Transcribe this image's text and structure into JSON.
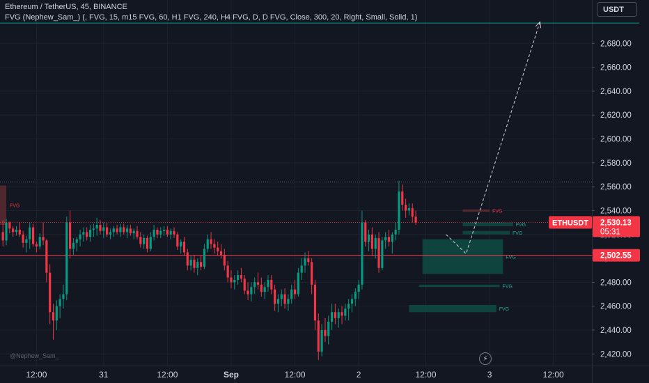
{
  "header": {
    "symbol_line": "Ethereum / TetherUS, 45, BINANCE",
    "indicator_line": "FVG (Nephew_Sam_) (, FVG, 15, m15 FVG, 60, H1 FVG, 240, H4 FVG, D, D FVG, Close, 300, 20, Right, Small, Solid, 1)",
    "currency_button": "USDT"
  },
  "watermark": "@Nephew_Sam_",
  "colors": {
    "background": "#131722",
    "up": "#089981",
    "down": "#f23645",
    "fvg_bull": "#0e4c42",
    "fvg_bear": "#5c2a30",
    "text": "#d1d4dc"
  },
  "chart_data": {
    "type": "candlestick",
    "y_range": [
      2412,
      2700
    ],
    "y_ticks": [
      "2,420.00",
      "2,440.00",
      "2,460.00",
      "2,480.00",
      "2,500.00",
      "2,520.00",
      "2,540.00",
      "2,560.00",
      "2,580.00",
      "2,600.00",
      "2,620.00",
      "2,640.00",
      "2,660.00",
      "2,680.00"
    ],
    "y_tick_values": [
      2420,
      2440,
      2460,
      2480,
      2500,
      2520,
      2540,
      2560,
      2580,
      2600,
      2620,
      2640,
      2660,
      2680
    ],
    "x_ticks": [
      {
        "label": "12:00",
        "index": 10
      },
      {
        "label": "31",
        "index": 30
      },
      {
        "label": "12:00",
        "index": 49
      },
      {
        "label": "Sep",
        "index": 68
      },
      {
        "label": "12:00",
        "index": 87
      },
      {
        "label": "2",
        "index": 106
      },
      {
        "label": "12:00",
        "index": 126
      },
      {
        "label": "3",
        "index": 145
      },
      {
        "label": "12:00",
        "index": 164
      }
    ],
    "candles": [
      [
        2522,
        2532,
        2510,
        2515
      ],
      [
        2515,
        2533,
        2511,
        2530
      ],
      [
        2530,
        2531,
        2521,
        2525
      ],
      [
        2525,
        2527,
        2518,
        2522
      ],
      [
        2522,
        2527,
        2519,
        2524
      ],
      [
        2524,
        2530,
        2518,
        2520
      ],
      [
        2520,
        2523,
        2509,
        2513
      ],
      [
        2513,
        2519,
        2505,
        2516
      ],
      [
        2516,
        2530,
        2508,
        2526
      ],
      [
        2526,
        2529,
        2510,
        2512
      ],
      [
        2512,
        2514,
        2505,
        2510
      ],
      [
        2510,
        2521,
        2508,
        2518
      ],
      [
        2518,
        2530,
        2511,
        2515
      ],
      [
        2515,
        2516,
        2480,
        2488
      ],
      [
        2488,
        2495,
        2445,
        2455
      ],
      [
        2455,
        2462,
        2432,
        2448
      ],
      [
        2448,
        2465,
        2440,
        2460
      ],
      [
        2460,
        2470,
        2450,
        2466
      ],
      [
        2466,
        2478,
        2458,
        2470
      ],
      [
        2470,
        2535,
        2465,
        2530
      ],
      [
        2530,
        2540,
        2500,
        2508
      ],
      [
        2508,
        2517,
        2503,
        2513
      ],
      [
        2513,
        2518,
        2506,
        2516
      ],
      [
        2516,
        2524,
        2510,
        2520
      ],
      [
        2520,
        2526,
        2514,
        2522
      ],
      [
        2522,
        2526,
        2515,
        2518
      ],
      [
        2518,
        2528,
        2514,
        2524
      ],
      [
        2524,
        2529,
        2518,
        2525
      ],
      [
        2525,
        2534,
        2519,
        2528
      ],
      [
        2528,
        2532,
        2520,
        2523
      ],
      [
        2523,
        2530,
        2517,
        2526
      ],
      [
        2526,
        2530,
        2518,
        2520
      ],
      [
        2520,
        2525,
        2516,
        2522
      ],
      [
        2522,
        2527,
        2518,
        2525
      ],
      [
        2525,
        2528,
        2520,
        2522
      ],
      [
        2522,
        2529,
        2518,
        2526
      ],
      [
        2526,
        2529,
        2520,
        2522
      ],
      [
        2522,
        2528,
        2517,
        2525
      ],
      [
        2525,
        2528,
        2519,
        2521
      ],
      [
        2521,
        2525,
        2516,
        2523
      ],
      [
        2523,
        2527,
        2516,
        2518
      ],
      [
        2518,
        2522,
        2509,
        2512
      ],
      [
        2512,
        2520,
        2508,
        2517
      ],
      [
        2517,
        2519,
        2505,
        2508
      ],
      [
        2508,
        2522,
        2506,
        2518
      ],
      [
        2518,
        2528,
        2515,
        2524
      ],
      [
        2524,
        2526,
        2517,
        2520
      ],
      [
        2520,
        2526,
        2517,
        2523
      ],
      [
        2523,
        2527,
        2519,
        2524
      ],
      [
        2524,
        2527,
        2518,
        2520
      ],
      [
        2520,
        2525,
        2516,
        2523
      ],
      [
        2523,
        2526,
        2517,
        2520
      ],
      [
        2520,
        2522,
        2507,
        2510
      ],
      [
        2510,
        2516,
        2504,
        2514
      ],
      [
        2514,
        2518,
        2502,
        2505
      ],
      [
        2505,
        2508,
        2490,
        2494
      ],
      [
        2494,
        2502,
        2490,
        2499
      ],
      [
        2499,
        2503,
        2488,
        2492
      ],
      [
        2492,
        2500,
        2486,
        2497
      ],
      [
        2497,
        2502,
        2490,
        2493
      ],
      [
        2493,
        2512,
        2491,
        2508
      ],
      [
        2508,
        2520,
        2505,
        2516
      ],
      [
        2516,
        2522,
        2508,
        2512
      ],
      [
        2512,
        2516,
        2504,
        2509
      ],
      [
        2509,
        2514,
        2502,
        2506
      ],
      [
        2506,
        2512,
        2500,
        2503
      ],
      [
        2503,
        2508,
        2490,
        2494
      ],
      [
        2494,
        2498,
        2480,
        2484
      ],
      [
        2484,
        2490,
        2475,
        2480
      ],
      [
        2480,
        2486,
        2474,
        2482
      ],
      [
        2482,
        2490,
        2478,
        2486
      ],
      [
        2486,
        2492,
        2480,
        2483
      ],
      [
        2483,
        2486,
        2470,
        2473
      ],
      [
        2473,
        2480,
        2465,
        2470
      ],
      [
        2470,
        2480,
        2464,
        2476
      ],
      [
        2476,
        2484,
        2470,
        2480
      ],
      [
        2480,
        2488,
        2474,
        2478
      ],
      [
        2478,
        2484,
        2468,
        2472
      ],
      [
        2472,
        2480,
        2466,
        2476
      ],
      [
        2476,
        2486,
        2472,
        2482
      ],
      [
        2482,
        2486,
        2470,
        2474
      ],
      [
        2474,
        2478,
        2456,
        2462
      ],
      [
        2462,
        2470,
        2455,
        2466
      ],
      [
        2466,
        2474,
        2460,
        2470
      ],
      [
        2470,
        2475,
        2458,
        2462
      ],
      [
        2462,
        2470,
        2456,
        2466
      ],
      [
        2466,
        2478,
        2462,
        2474
      ],
      [
        2474,
        2482,
        2466,
        2470
      ],
      [
        2470,
        2492,
        2468,
        2488
      ],
      [
        2488,
        2500,
        2482,
        2494
      ],
      [
        2494,
        2505,
        2488,
        2500
      ],
      [
        2500,
        2506,
        2494,
        2497
      ],
      [
        2497,
        2500,
        2470,
        2478
      ],
      [
        2478,
        2482,
        2440,
        2448
      ],
      [
        2448,
        2454,
        2415,
        2422
      ],
      [
        2422,
        2445,
        2418,
        2440
      ],
      [
        2440,
        2450,
        2430,
        2435
      ],
      [
        2435,
        2452,
        2428,
        2447
      ],
      [
        2447,
        2462,
        2440,
        2455
      ],
      [
        2455,
        2462,
        2445,
        2450
      ],
      [
        2450,
        2458,
        2442,
        2455
      ],
      [
        2455,
        2460,
        2445,
        2452
      ],
      [
        2452,
        2462,
        2448,
        2458
      ],
      [
        2458,
        2466,
        2448,
        2462
      ],
      [
        2462,
        2470,
        2455,
        2466
      ],
      [
        2466,
        2475,
        2460,
        2472
      ],
      [
        2472,
        2482,
        2466,
        2478
      ],
      [
        2478,
        2540,
        2474,
        2530
      ],
      [
        2530,
        2532,
        2510,
        2514
      ],
      [
        2514,
        2524,
        2506,
        2520
      ],
      [
        2520,
        2526,
        2502,
        2508
      ],
      [
        2508,
        2520,
        2500,
        2517
      ],
      [
        2517,
        2522,
        2488,
        2492
      ],
      [
        2492,
        2518,
        2490,
        2515
      ],
      [
        2515,
        2522,
        2508,
        2518
      ],
      [
        2518,
        2524,
        2510,
        2514
      ],
      [
        2514,
        2522,
        2504,
        2520
      ],
      [
        2520,
        2530,
        2515,
        2524
      ],
      [
        2524,
        2565,
        2520,
        2556
      ],
      [
        2556,
        2562,
        2540,
        2545
      ],
      [
        2545,
        2550,
        2534,
        2540
      ],
      [
        2540,
        2546,
        2536,
        2542
      ],
      [
        2542,
        2546,
        2530,
        2535
      ],
      [
        2535,
        2540,
        2528,
        2530
      ]
    ],
    "price_lines": [
      {
        "price": 2564,
        "style": "dotted",
        "color": "#5d606b"
      },
      {
        "price": 2530.13,
        "style": "dotted",
        "color": "#f23645"
      },
      {
        "price": 2502.55,
        "style": "solid",
        "color": "#f23645"
      },
      {
        "price": 2697,
        "style": "solid",
        "color": "#089981"
      }
    ],
    "fvg_zones": [
      {
        "label": "FVG",
        "kind": "bear",
        "top": 2561,
        "bottom": 2528,
        "start": -2,
        "end": 1,
        "label_at": "left"
      },
      {
        "label": "FVG",
        "kind": "bear",
        "top": 2541,
        "bottom": 2539,
        "start": 137,
        "end": 145,
        "label_at": "right"
      },
      {
        "label": "FVG",
        "kind": "bull",
        "top": 2530,
        "bottom": 2527,
        "start": 137,
        "end": 152,
        "label_at": "right"
      },
      {
        "label": "FVG",
        "kind": "bull",
        "top": 2523,
        "bottom": 2520,
        "start": 137,
        "end": 151,
        "label_at": "right"
      },
      {
        "label": "FVG",
        "kind": "bull",
        "top": 2516,
        "bottom": 2487,
        "start": 125,
        "end": 149,
        "label_at": "right"
      },
      {
        "label": "FVG",
        "kind": "bull",
        "top": 2478,
        "bottom": 2476,
        "start": 124,
        "end": 148,
        "label_at": "right"
      },
      {
        "label": "FVG",
        "kind": "bull",
        "top": 2461,
        "bottom": 2455,
        "start": 121,
        "end": 147,
        "label_at": "right"
      }
    ],
    "projection": [
      [
        132,
        2520
      ],
      [
        138,
        2504
      ],
      [
        160,
        2698
      ]
    ],
    "price_badges": [
      {
        "symbol": "ETHUSDT",
        "price_label": "2,530.13",
        "countdown": "05:31",
        "price": 2530.13,
        "color": "#f23645"
      },
      {
        "price_label": "2,502.55",
        "price": 2502.55,
        "color": "#f23645"
      }
    ]
  }
}
